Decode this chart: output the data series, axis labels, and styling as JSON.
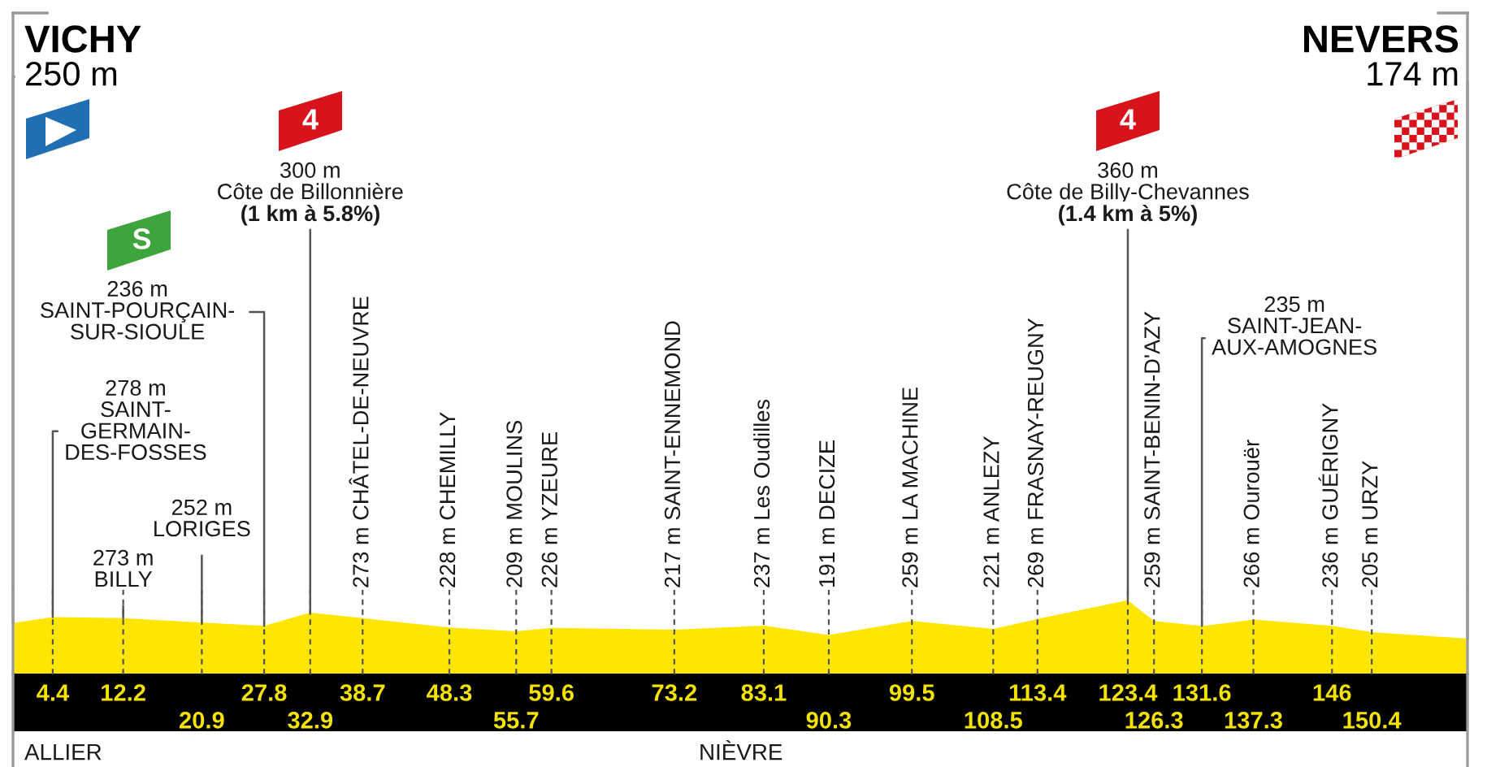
{
  "chart_data": {
    "type": "area",
    "x": [
      0,
      4.4,
      12.2,
      20.9,
      27.8,
      32.9,
      38.7,
      48.3,
      55.7,
      59.6,
      73.2,
      83.1,
      90.3,
      99.5,
      108.5,
      113.4,
      123.4,
      126.3,
      131.6,
      137.3,
      146,
      150.4,
      161
    ],
    "series": [
      {
        "color": "#ffe600",
        "values": [
          250,
          278,
          273,
          252,
          236,
          300,
          273,
          228,
          209,
          226,
          217,
          237,
          191,
          259,
          221,
          269,
          360,
          259,
          235,
          266,
          236,
          205,
          174
        ],
        "value_labels": [
          "250 m",
          "278 m\nSAINT-\nGERMAIN-\nDES-FOSSES",
          "273 m\nBILLY",
          "252 m\nLORIGES",
          "236 m\nSAINT-POURÇAIN-\nSUR-SIOULE",
          "300 m\nCôte de Billonnière",
          "273 m CHÂTEL-DE-NEUVRE",
          "228 m CHEMILLY",
          "209 m MOULINS",
          "226 m YZEURE",
          "217 m SAINT-ENNEMOND",
          "237 m Les Oudilles",
          "191 m DECIZE",
          "259 m LA MACHINE",
          "221 m ANLEZY",
          "269 m FRASNAY-REUGNY",
          "360 m\nCôte de Billy-Chevannes",
          "259 m SAINT-BENIN-D'AZY",
          "235 m\nSAINT-JEAN-\nAUX-AMOGNES",
          "266 m Ourouër",
          "236 m GUÉRIGNY",
          "205 m URZY",
          "174 m"
        ]
      }
    ],
    "xlim": [
      0,
      161
    ],
    "xticks": [
      4.4,
      12.2,
      27.8,
      38.7,
      48.3,
      59.6,
      73.2,
      83.1,
      99.5,
      113.4,
      123.4,
      131.6,
      146
    ],
    "x2lim": [
      0,
      161
    ],
    "x2ticks": [
      20.9,
      32.9,
      55.7,
      90.3,
      108.5,
      126.3,
      137.3,
      150.4
    ],
    "tick_labels": "x",
    "grid": "x",
    "annotations": [
      "VICHY",
      "NEVERS",
      "4",
      "(1 km à 5.8%)",
      "S",
      "4",
      "(1.4 km à 5%)",
      "ALLIER",
      "NIÈVRE"
    ]
  }
}
